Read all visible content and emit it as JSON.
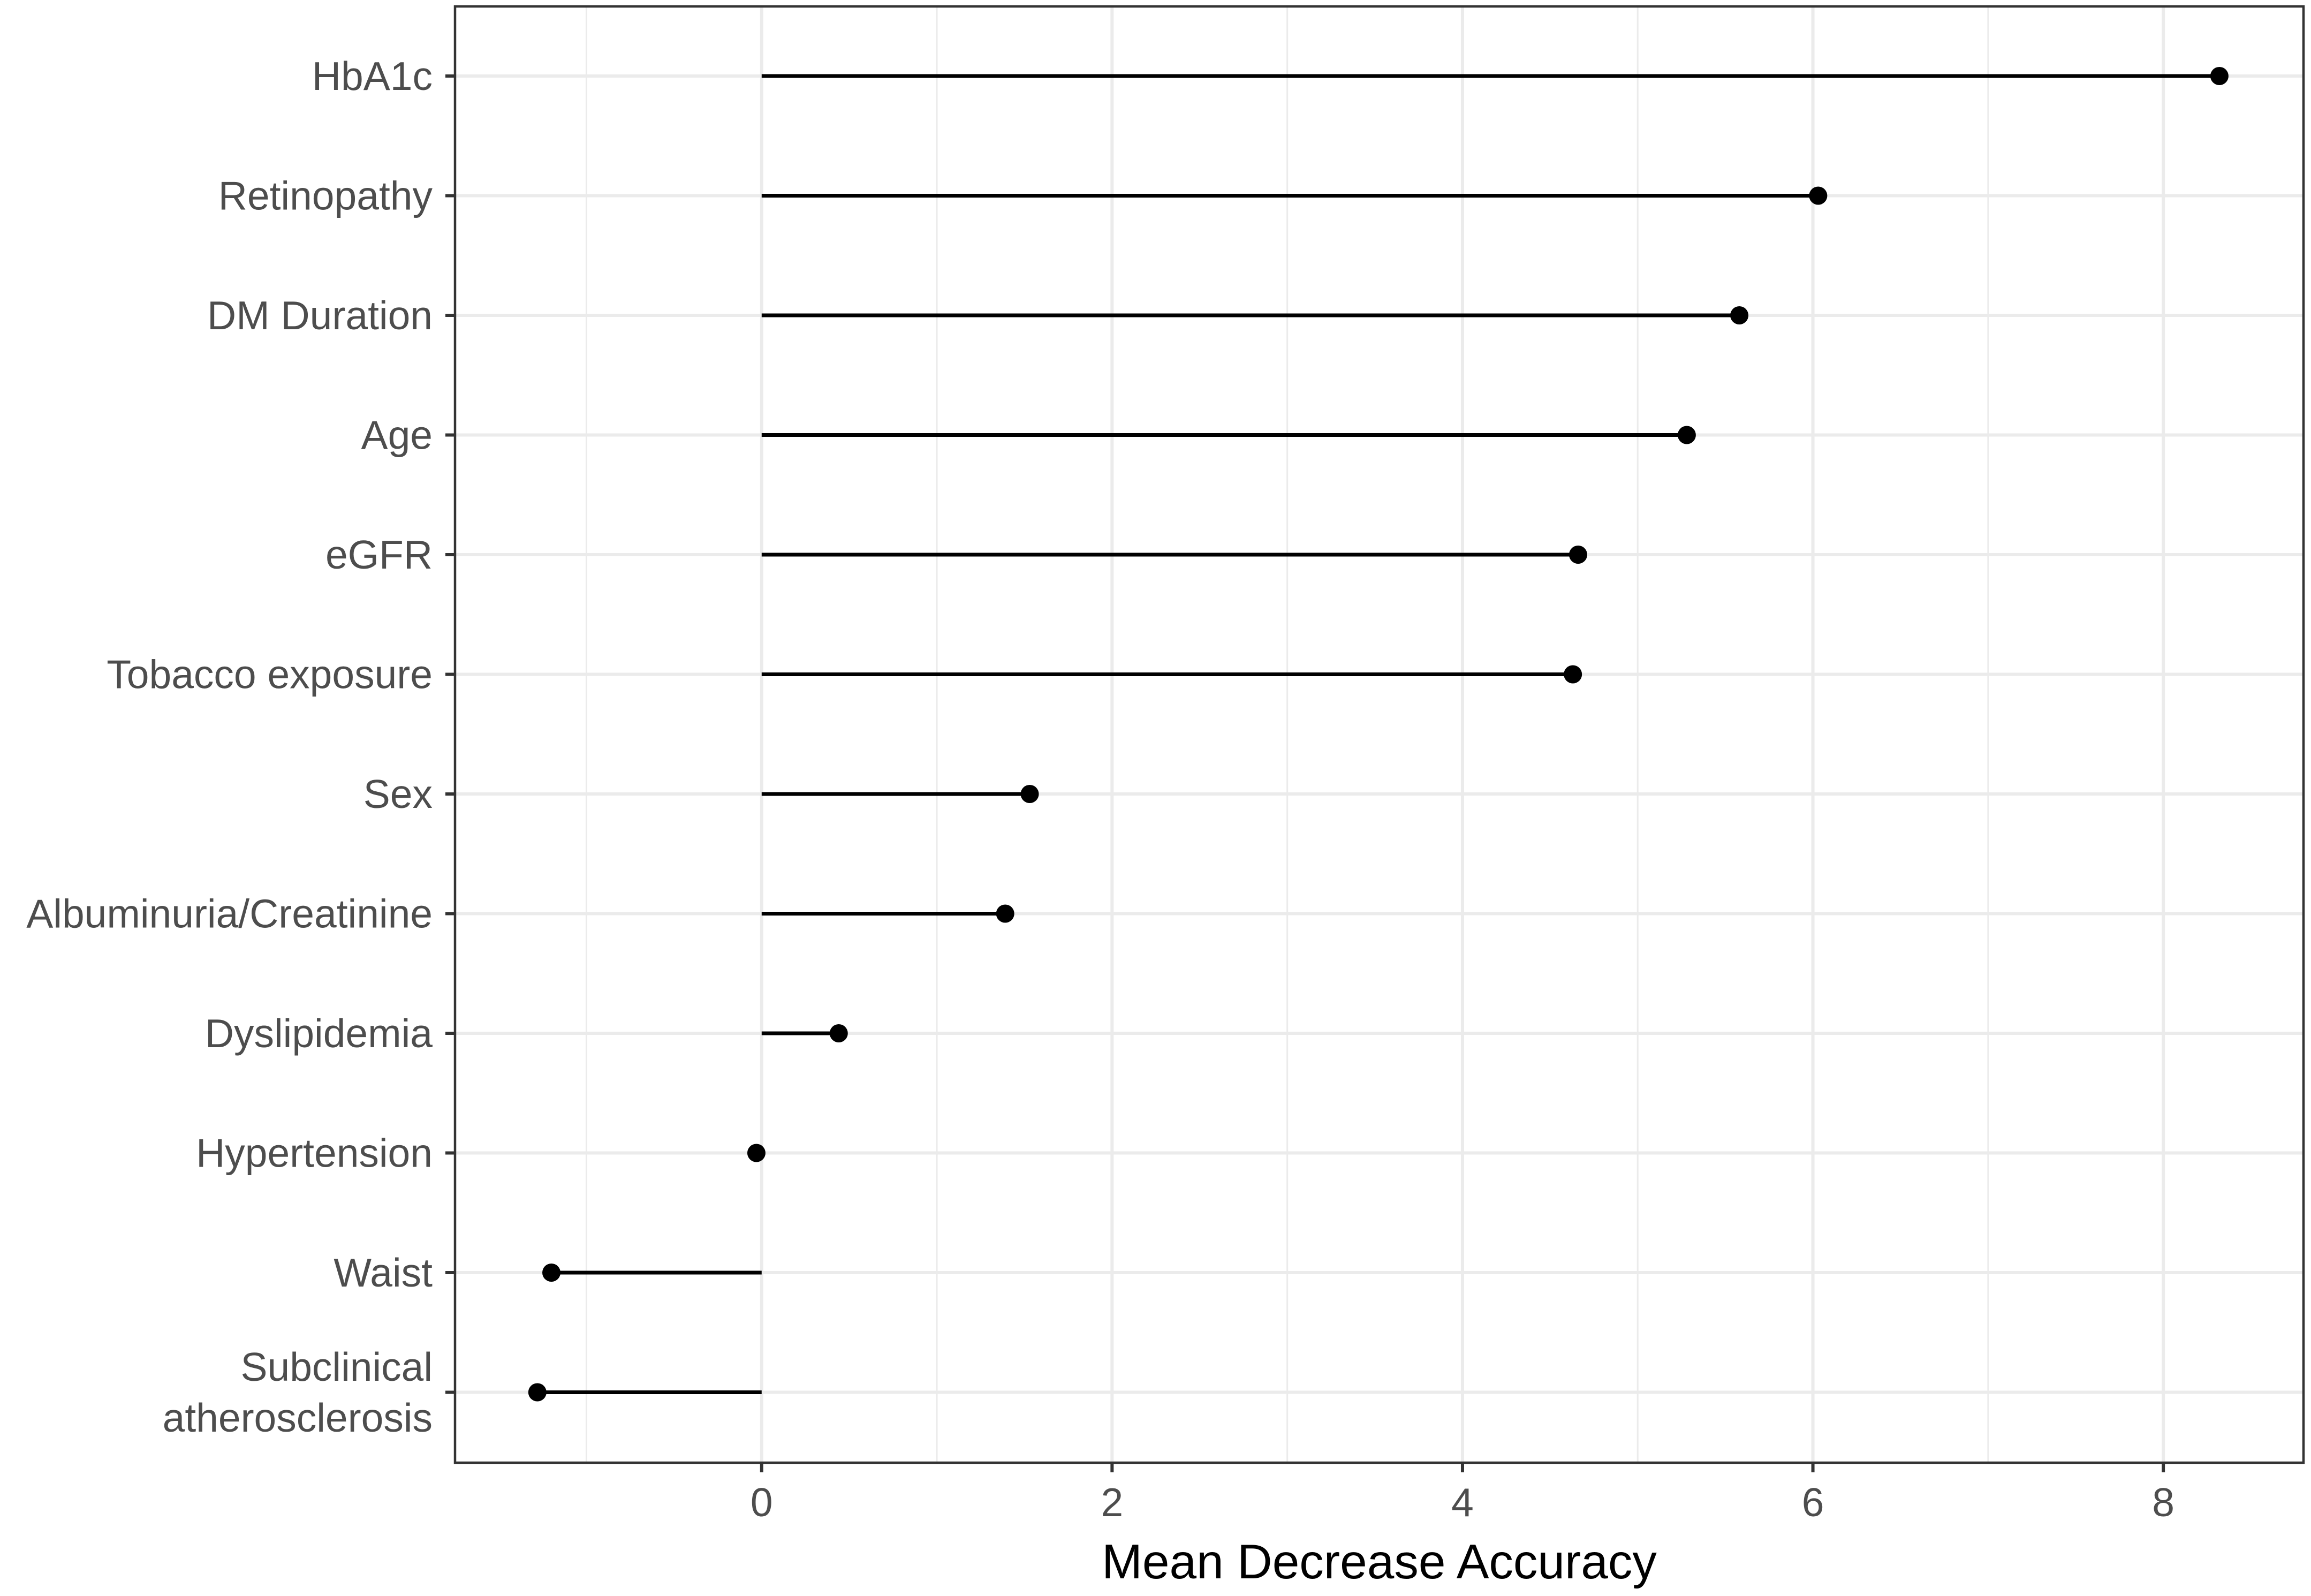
{
  "chart_data": {
    "type": "lollipop",
    "xlabel": "Mean Decrease Accuracy",
    "ylabel": "",
    "xlim": [
      -1.75,
      8.8
    ],
    "x_ticks": [
      0,
      2,
      4,
      6,
      8
    ],
    "x_tick_labels": [
      "0",
      "2",
      "4",
      "6",
      "8"
    ],
    "grid": true,
    "baseline": 0,
    "categories": [
      [
        "HbA1c"
      ],
      [
        "Retinopathy"
      ],
      [
        "DM Duration"
      ],
      [
        "Age"
      ],
      [
        "eGFR"
      ],
      [
        "Tobacco exposure"
      ],
      [
        "Sex"
      ],
      [
        "Albuminuria/Creatinine"
      ],
      [
        "Dyslipidemia"
      ],
      [
        "Hypertension"
      ],
      [
        "Waist"
      ],
      [
        "Subclinical",
        "atherosclerosis"
      ]
    ],
    "values": [
      8.32,
      6.03,
      5.58,
      5.28,
      4.66,
      4.63,
      1.53,
      1.39,
      0.44,
      -0.03,
      -1.2,
      -1.28
    ]
  }
}
